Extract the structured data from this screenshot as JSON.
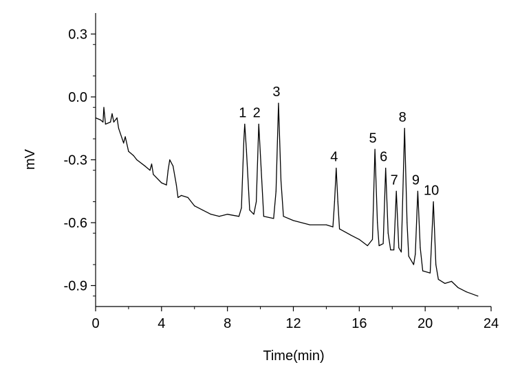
{
  "chart_data": {
    "type": "line",
    "title": "",
    "xlabel": "Time(min)",
    "ylabel": "mV",
    "xlim": [
      0,
      24
    ],
    "ylim": [
      -1.0,
      0.4
    ],
    "xticks": [
      0,
      4,
      8,
      12,
      16,
      20,
      24
    ],
    "xtick_labels": [
      "0",
      "4",
      "8",
      "12",
      "16",
      "20",
      "24"
    ],
    "yticks": [
      0.3,
      0.0,
      -0.3,
      -0.6,
      -0.9
    ],
    "ytick_labels": [
      "0.3",
      "0.0",
      "-0.3",
      "-0.6",
      "-0.9"
    ],
    "grid": false,
    "series": [
      {
        "name": "chromatogram",
        "color": "#000000",
        "x": [
          0,
          0.3,
          0.45,
          0.5,
          0.6,
          0.9,
          1.0,
          1.1,
          1.3,
          1.4,
          1.7,
          1.8,
          2.0,
          2.3,
          2.5,
          3.0,
          3.3,
          3.4,
          3.5,
          4.0,
          4.3,
          4.4,
          4.5,
          4.7,
          4.9,
          5.0,
          5.2,
          5.6,
          6.0,
          6.5,
          7.0,
          7.5,
          8.0,
          8.7,
          8.85,
          9.0,
          9.05,
          9.15,
          9.35,
          9.6,
          9.75,
          9.9,
          10.05,
          10.2,
          10.8,
          10.95,
          11.1,
          11.25,
          11.4,
          12,
          13,
          14,
          14.4,
          14.5,
          14.6,
          14.7,
          14.8,
          15.5,
          16.0,
          16.5,
          16.8,
          16.95,
          17.1,
          17.2,
          17.45,
          17.6,
          17.75,
          17.9,
          18.1,
          18.25,
          18.4,
          18.55,
          18.75,
          18.9,
          19.0,
          19.3,
          19.4,
          19.55,
          19.7,
          19.85,
          20.3,
          20.5,
          20.65,
          20.8,
          21.2,
          21.6,
          22.0,
          22.5,
          23.2
        ],
        "y": [
          -0.1,
          -0.11,
          -0.12,
          -0.05,
          -0.13,
          -0.12,
          -0.08,
          -0.12,
          -0.1,
          -0.15,
          -0.22,
          -0.19,
          -0.26,
          -0.28,
          -0.3,
          -0.33,
          -0.35,
          -0.32,
          -0.37,
          -0.41,
          -0.42,
          -0.35,
          -0.3,
          -0.33,
          -0.42,
          -0.48,
          -0.47,
          -0.48,
          -0.52,
          -0.54,
          -0.56,
          -0.57,
          -0.56,
          -0.57,
          -0.53,
          -0.2,
          -0.13,
          -0.25,
          -0.54,
          -0.56,
          -0.5,
          -0.13,
          -0.35,
          -0.57,
          -0.58,
          -0.45,
          -0.03,
          -0.4,
          -0.57,
          -0.59,
          -0.61,
          -0.61,
          -0.62,
          -0.5,
          -0.34,
          -0.5,
          -0.63,
          -0.66,
          -0.68,
          -0.71,
          -0.68,
          -0.25,
          -0.6,
          -0.71,
          -0.7,
          -0.34,
          -0.65,
          -0.73,
          -0.73,
          -0.45,
          -0.72,
          -0.74,
          -0.15,
          -0.6,
          -0.76,
          -0.8,
          -0.75,
          -0.45,
          -0.72,
          -0.83,
          -0.84,
          -0.5,
          -0.8,
          -0.87,
          -0.89,
          -0.88,
          -0.91,
          -0.93,
          -0.95
        ]
      }
    ],
    "annotations": [
      {
        "text": "1",
        "x": 9.05,
        "y": -0.13
      },
      {
        "text": "2",
        "x": 9.9,
        "y": -0.13
      },
      {
        "text": "3",
        "x": 11.1,
        "y": -0.03
      },
      {
        "text": "4",
        "x": 14.6,
        "y": -0.34
      },
      {
        "text": "5",
        "x": 16.95,
        "y": -0.25
      },
      {
        "text": "6",
        "x": 17.6,
        "y": -0.34
      },
      {
        "text": "7",
        "x": 18.25,
        "y": -0.45
      },
      {
        "text": "8",
        "x": 18.75,
        "y": -0.15
      },
      {
        "text": "9",
        "x": 19.55,
        "y": -0.45
      },
      {
        "text": "10",
        "x": 20.5,
        "y": -0.5
      }
    ]
  }
}
